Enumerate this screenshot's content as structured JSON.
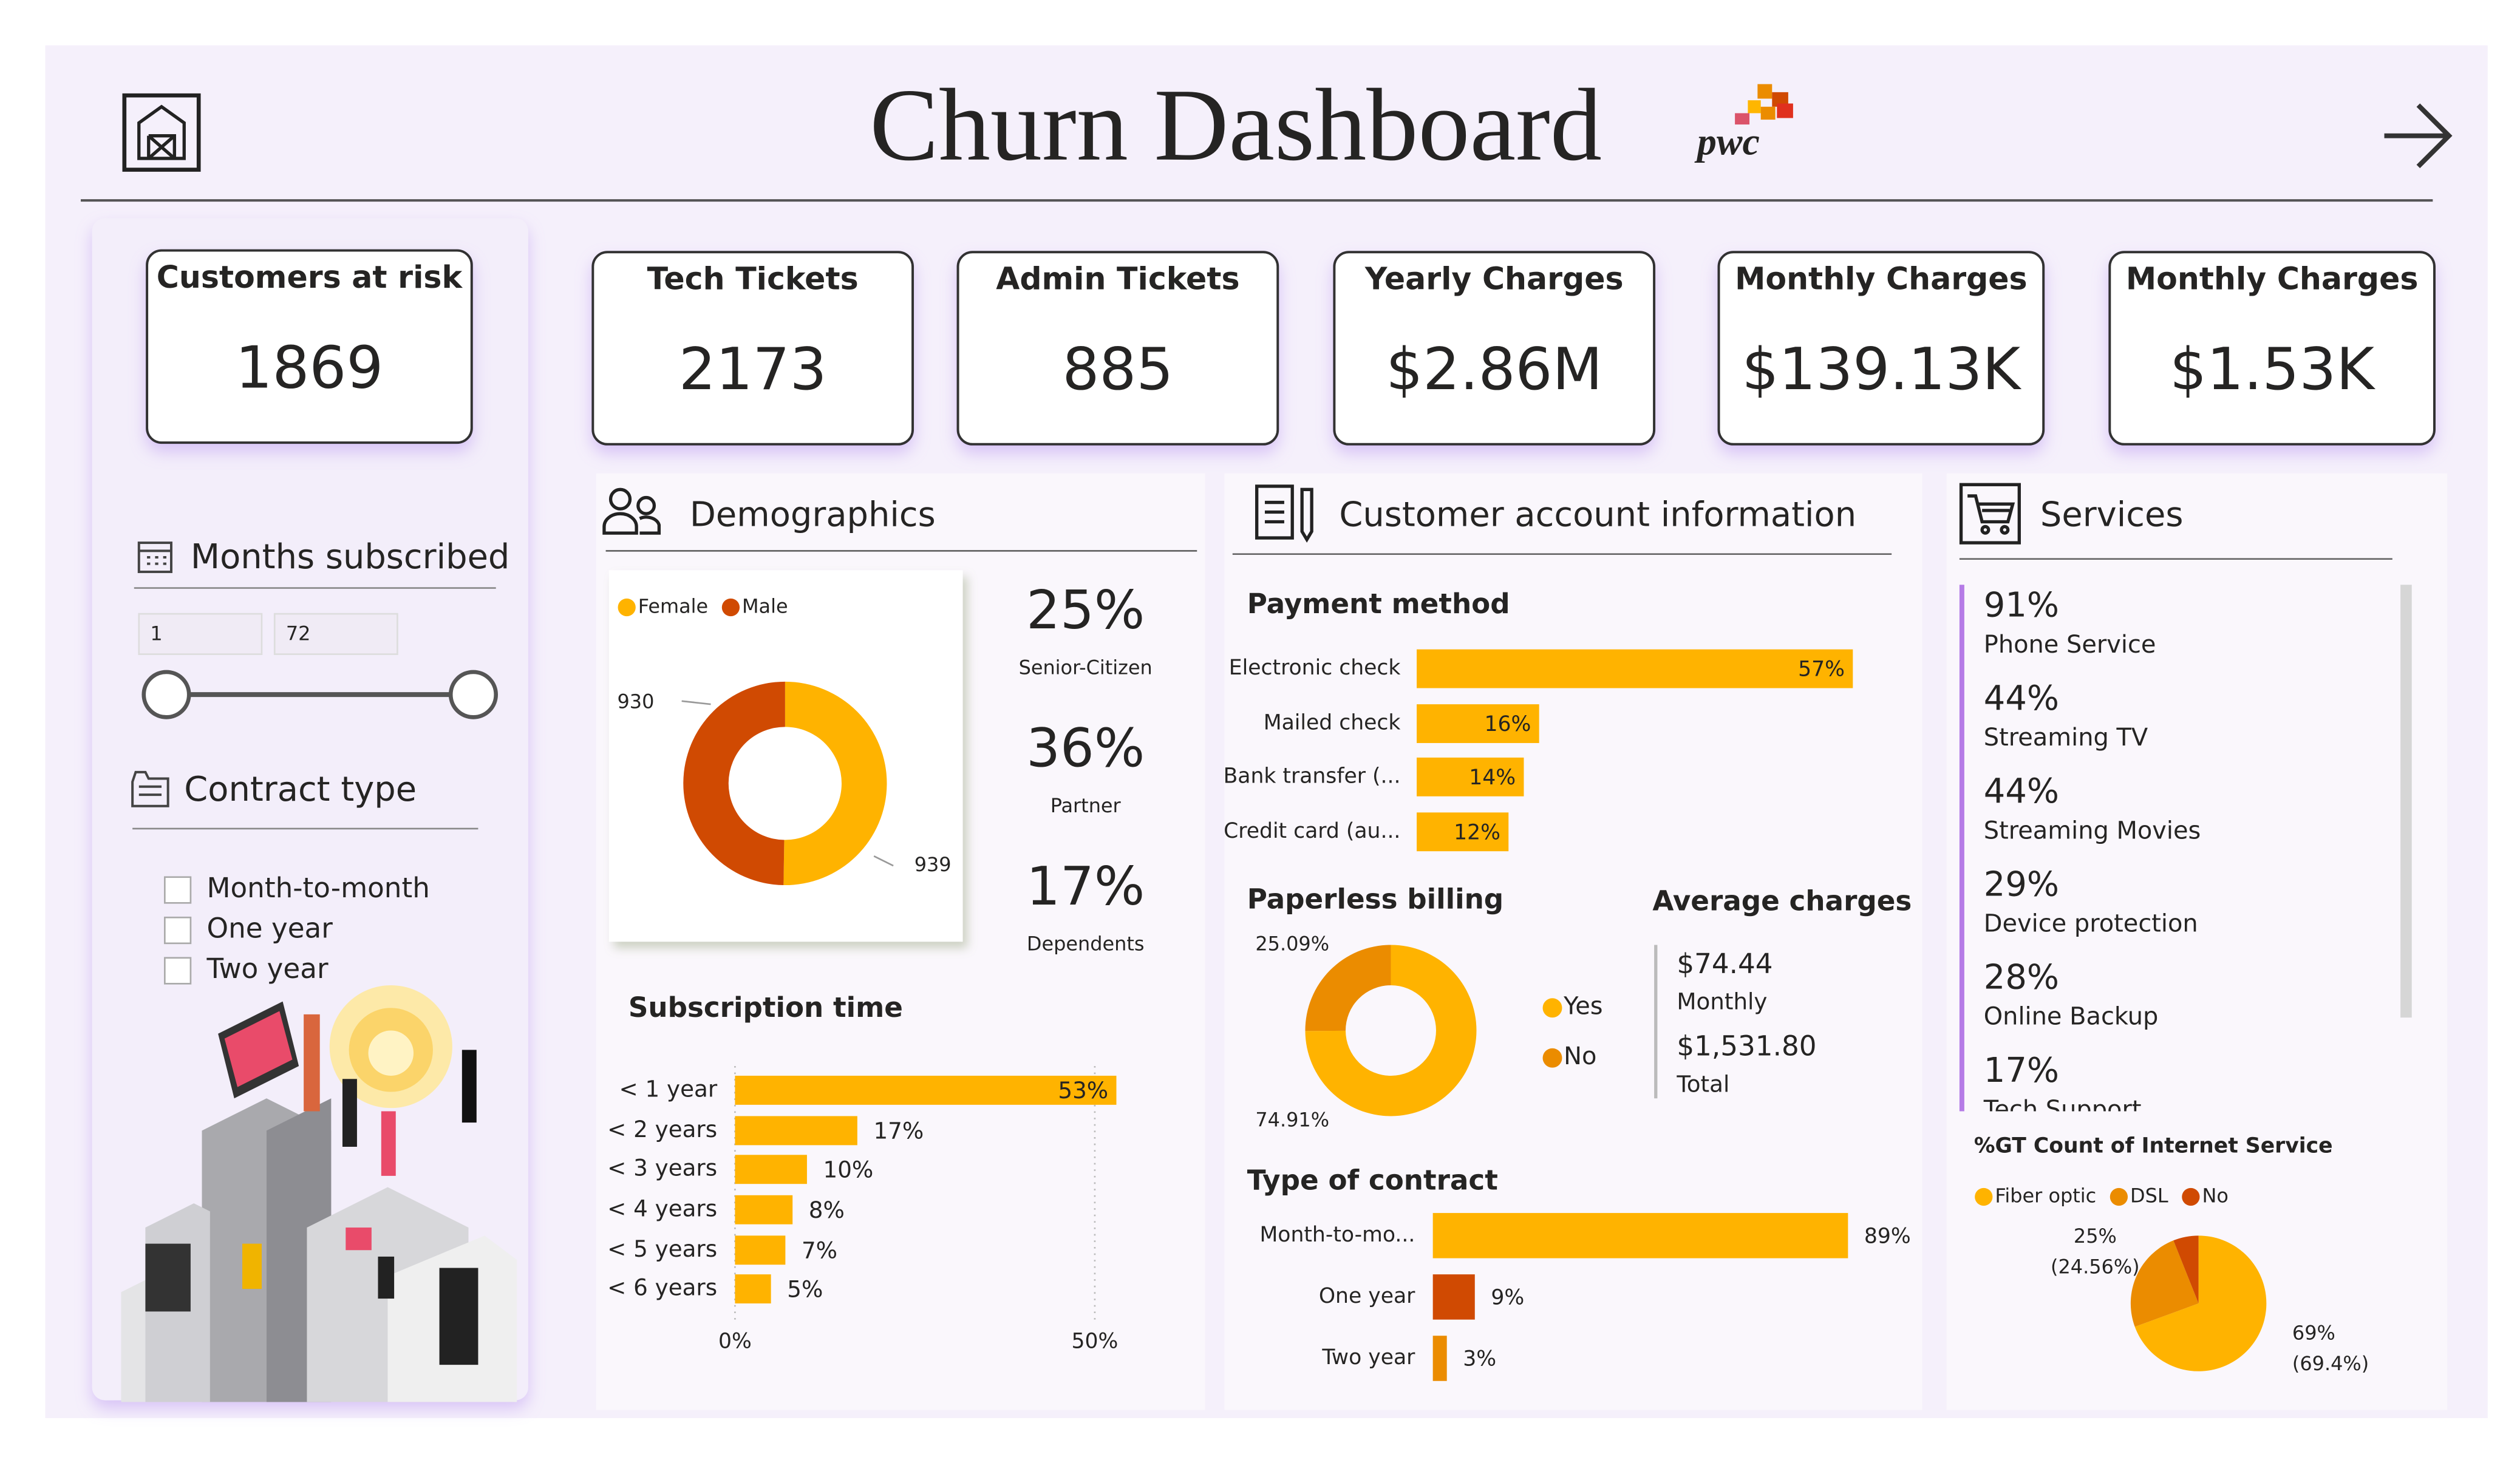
{
  "header": {
    "title": "Churn Dashboard",
    "logo": "pwc"
  },
  "kpis": [
    {
      "label": "Customers at risk",
      "value": "1869"
    },
    {
      "label": "Tech Tickets",
      "value": "2173"
    },
    {
      "label": "Admin Tickets",
      "value": "885"
    },
    {
      "label": "Yearly Charges",
      "value": "$2.86M"
    },
    {
      "label": "Monthly Charges",
      "value": "$139.13K"
    },
    {
      "label": "Monthly Charges",
      "value": "$1.53K"
    }
  ],
  "filters": {
    "months": {
      "title": "Months subscribed",
      "min": "1",
      "max": "72"
    },
    "contract": {
      "title": "Contract type",
      "options": [
        "Month-to-month",
        "One year",
        "Two year"
      ]
    }
  },
  "demographics": {
    "title": "Demographics",
    "stats": [
      {
        "value": "25%",
        "label": "Senior-Citizen"
      },
      {
        "value": "36%",
        "label": "Partner"
      },
      {
        "value": "17%",
        "label": "Dependents"
      }
    ]
  },
  "account": {
    "title": "Customer account information",
    "average": {
      "title": "Average charges",
      "items": [
        {
          "value": "$74.44",
          "label": "Monthly"
        },
        {
          "value": "$1,531.80",
          "label": "Total"
        }
      ]
    }
  },
  "services": {
    "title": "Services",
    "items": [
      {
        "value": "91%",
        "label": "Phone Service"
      },
      {
        "value": "44%",
        "label": "Streaming TV"
      },
      {
        "value": "44%",
        "label": "Streaming Movies"
      },
      {
        "value": "29%",
        "label": "Device protection"
      },
      {
        "value": "28%",
        "label": "Online Backup"
      },
      {
        "value": "17%",
        "label": "Tech Support"
      }
    ]
  },
  "chart_data": [
    {
      "type": "donut",
      "categories": [
        "Female",
        "Male"
      ],
      "values": [
        939,
        930
      ],
      "colors": [
        "#ffb300",
        "#d04a02"
      ]
    },
    {
      "type": "hbar",
      "title": "Subscription time",
      "categories": [
        "< 1 year",
        "< 2 years",
        "< 3 years",
        "< 4 years",
        "< 5 years",
        "< 6 years"
      ],
      "values": [
        53,
        17,
        10,
        8,
        7,
        5
      ],
      "value_labels": [
        "53%",
        "17%",
        "10%",
        "8%",
        "7%",
        "5%"
      ],
      "color": "#ffb300",
      "xlim": [
        0,
        55
      ],
      "xticks": [
        {
          "value": 0,
          "label": "0%"
        },
        {
          "value": 50,
          "label": "50%"
        }
      ]
    },
    {
      "type": "hbar",
      "title": "Payment method",
      "categories": [
        "Electronic check",
        "Mailed check",
        "Bank transfer (...",
        "Credit card (au..."
      ],
      "values": [
        57,
        16,
        14,
        12
      ],
      "value_labels": [
        "57%",
        "16%",
        "14%",
        "12%"
      ],
      "color": "#ffb300"
    },
    {
      "type": "donut",
      "title": "Paperless billing",
      "categories": [
        "Yes",
        "No"
      ],
      "values": [
        74.91,
        25.09
      ],
      "value_labels": [
        "74.91%",
        "25.09%"
      ],
      "colors": [
        "#ffb300",
        "#eb8c00"
      ]
    },
    {
      "type": "hbar",
      "title": "Type of contract",
      "categories": [
        "Month-to-mo...",
        "One year",
        "Two year"
      ],
      "values": [
        89,
        9,
        3
      ],
      "value_labels": [
        "89%",
        "9%",
        "3%"
      ],
      "colors": [
        "#ffb300",
        "#d04a02",
        "#eb8c00"
      ]
    },
    {
      "type": "pie",
      "title": "%GT Count of Internet Service",
      "categories": [
        "Fiber optic",
        "DSL",
        "No"
      ],
      "values": [
        69.4,
        24.56,
        6.04
      ],
      "value_labels": [
        "69%\n(69.4%)",
        "25%\n(24.56%)",
        null
      ],
      "colors": [
        "#ffb300",
        "#eb8c00",
        "#d04a02"
      ]
    }
  ]
}
